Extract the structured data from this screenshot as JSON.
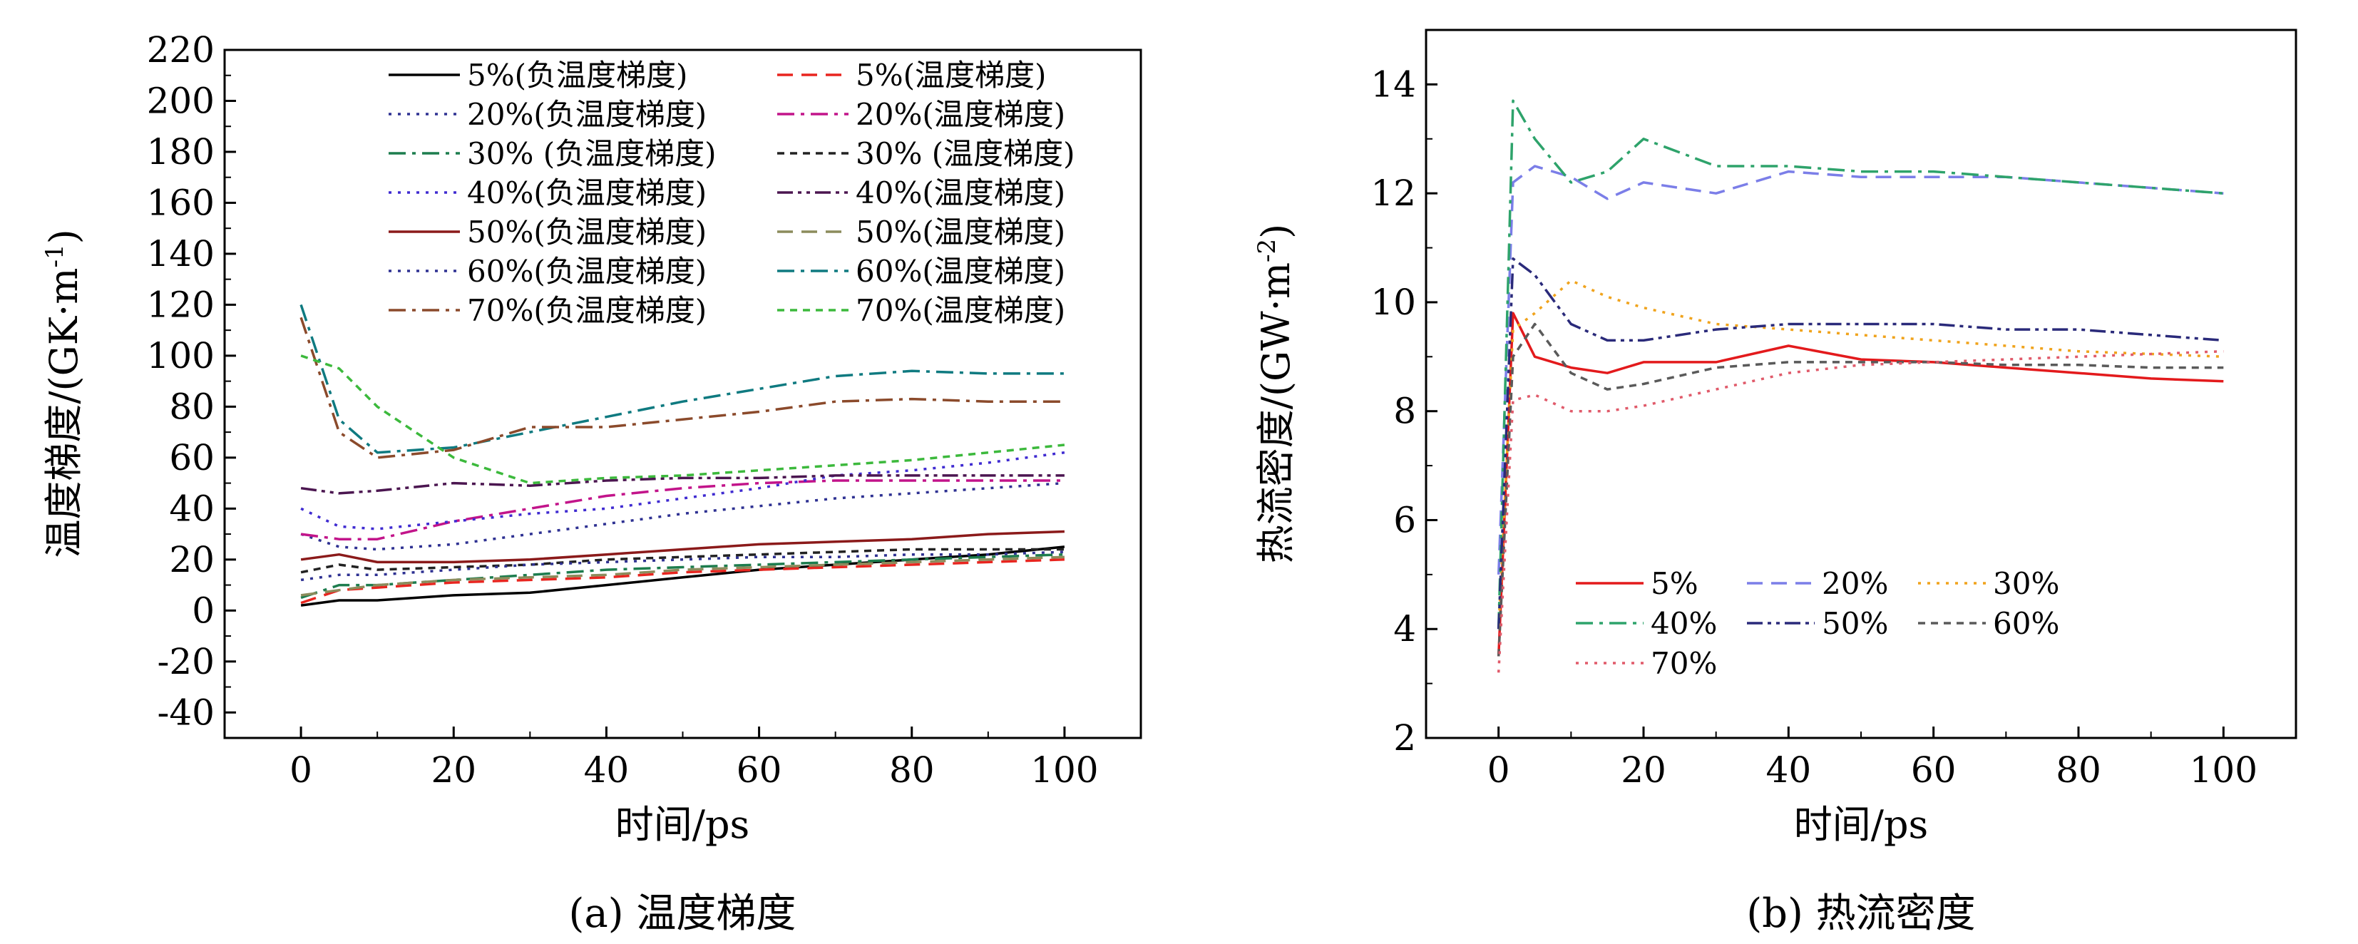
{
  "charts": [
    {
      "caption": "(a) 温度梯度",
      "xlabel": "时间/ps",
      "ylabel_main": "温度梯度/(GK·m",
      "ylabel_sup": "-1",
      "ylabel_tail": ")",
      "xticks": [
        "0",
        "20",
        "40",
        "60",
        "80",
        "100"
      ],
      "yticks": [
        "-40",
        "-20",
        "0",
        "20",
        "40",
        "60",
        "80",
        "100",
        "120",
        "140",
        "160",
        "180",
        "200",
        "220"
      ]
    },
    {
      "caption": "(b) 热流密度",
      "xlabel": "时间/ps",
      "ylabel_main": "热流密度/(GW·m",
      "ylabel_sup": "-2",
      "ylabel_tail": ")",
      "xticks": [
        "0",
        "20",
        "40",
        "60",
        "80",
        "100"
      ],
      "yticks": [
        "2",
        "4",
        "6",
        "8",
        "10",
        "12",
        "14"
      ]
    }
  ],
  "chart_data": [
    {
      "type": "line",
      "xlabel": "时间/ps",
      "ylabel": "温度梯度/(GK·m-1)",
      "xlim": [
        -10,
        110
      ],
      "ylim": [
        -50,
        220
      ],
      "grid": false,
      "legend_position": "top-center",
      "x": [
        0,
        5,
        10,
        20,
        30,
        40,
        50,
        60,
        70,
        80,
        90,
        100
      ],
      "series": [
        {
          "name": "5%(负温度梯度)",
          "color": "#000000",
          "dash": "solid",
          "values": [
            2,
            4,
            4,
            6,
            7,
            10,
            13,
            16,
            18,
            20,
            22,
            25
          ]
        },
        {
          "name": "5%(温度梯度)",
          "color": "#e8251f",
          "dash": "dash",
          "values": [
            3,
            8,
            9,
            11,
            12,
            13,
            15,
            16,
            17,
            18,
            19,
            20
          ]
        },
        {
          "name": "20%(负温度梯度)",
          "color": "#2e3192",
          "dash": "dot",
          "values": [
            30,
            25,
            24,
            26,
            30,
            34,
            38,
            41,
            44,
            46,
            48,
            50
          ]
        },
        {
          "name": "20%(温度梯度)",
          "color": "#c2148a",
          "dash": "dashdot",
          "values": [
            30,
            28,
            28,
            35,
            40,
            45,
            48,
            50,
            51,
            51,
            51,
            51
          ]
        },
        {
          "name": "30% (负温度梯度)",
          "color": "#1d7d4e",
          "dash": "dashdot",
          "values": [
            5,
            10,
            10,
            12,
            14,
            16,
            17,
            18,
            19,
            20,
            21,
            22
          ]
        },
        {
          "name": "30% (温度梯度)",
          "color": "#222222",
          "dash": "shortdash",
          "values": [
            15,
            18,
            16,
            17,
            18,
            20,
            21,
            22,
            23,
            24,
            24,
            24
          ]
        },
        {
          "name": "40%(负温度梯度)",
          "color": "#3f2bd1",
          "dash": "dot",
          "values": [
            40,
            33,
            32,
            35,
            38,
            40,
            44,
            48,
            53,
            55,
            58,
            62
          ]
        },
        {
          "name": "40%(温度梯度)",
          "color": "#4b1650",
          "dash": "dashdotdot",
          "values": [
            48,
            46,
            47,
            50,
            49,
            51,
            52,
            52,
            53,
            53,
            53,
            53
          ]
        },
        {
          "name": "50%(负温度梯度)",
          "color": "#8b1a1a",
          "dash": "solid",
          "values": [
            20,
            22,
            19,
            19,
            20,
            22,
            24,
            26,
            27,
            28,
            30,
            31
          ]
        },
        {
          "name": "50%(温度梯度)",
          "color": "#8c8c5c",
          "dash": "dash",
          "values": [
            6,
            8,
            10,
            12,
            13,
            14,
            16,
            17,
            18,
            19,
            20,
            21
          ]
        },
        {
          "name": "60%(负温度梯度)",
          "color": "#2e3192",
          "dash": "dot",
          "values": [
            12,
            14,
            14,
            16,
            18,
            19,
            20,
            21,
            21,
            22,
            22,
            23
          ]
        },
        {
          "name": "60%(温度梯度)",
          "color": "#0f7a80",
          "dash": "dashdot",
          "values": [
            120,
            75,
            62,
            64,
            70,
            76,
            82,
            87,
            92,
            94,
            93,
            93
          ]
        },
        {
          "name": "70%(负温度梯度)",
          "color": "#8b4a2b",
          "dash": "dashdot",
          "values": [
            115,
            70,
            60,
            63,
            72,
            72,
            75,
            78,
            82,
            83,
            82,
            82
          ]
        },
        {
          "name": "70%(温度梯度)",
          "color": "#3cb93c",
          "dash": "shortdash",
          "values": [
            100,
            95,
            80,
            60,
            50,
            52,
            53,
            55,
            57,
            59,
            62,
            65
          ]
        }
      ]
    },
    {
      "type": "line",
      "xlabel": "时间/ps",
      "ylabel": "热流密度/(GW·m-2)",
      "xlim": [
        -10,
        110
      ],
      "ylim": [
        2,
        15
      ],
      "grid": false,
      "legend_position": "bottom-center",
      "x": [
        0,
        2,
        5,
        10,
        15,
        20,
        30,
        40,
        50,
        60,
        70,
        80,
        90,
        100
      ],
      "series": [
        {
          "name": "5%",
          "color": "#e31a1c",
          "dash": "solid",
          "values": [
            3.5,
            9.8,
            9.0,
            8.8,
            8.7,
            8.9,
            8.9,
            9.2,
            8.95,
            8.9,
            8.8,
            8.7,
            8.6,
            8.55
          ]
        },
        {
          "name": "20%",
          "color": "#7b7ee8",
          "dash": "dash",
          "values": [
            5,
            12.2,
            12.5,
            12.3,
            11.9,
            12.2,
            12.0,
            12.4,
            12.3,
            12.3,
            12.3,
            12.2,
            12.1,
            12.0
          ]
        },
        {
          "name": "30%",
          "color": "#f0a31c",
          "dash": "dot",
          "values": [
            4,
            9.5,
            9.8,
            10.4,
            10.1,
            9.9,
            9.6,
            9.5,
            9.4,
            9.3,
            9.2,
            9.1,
            9.05,
            9.0
          ]
        },
        {
          "name": "40%",
          "color": "#2ea36b",
          "dash": "dashdot",
          "values": [
            4,
            13.7,
            13.0,
            12.2,
            12.4,
            13.0,
            12.5,
            12.5,
            12.4,
            12.4,
            12.3,
            12.2,
            12.1,
            12.0
          ]
        },
        {
          "name": "50%",
          "color": "#2a2a7a",
          "dash": "dashdotdot",
          "values": [
            4,
            10.8,
            10.5,
            9.6,
            9.3,
            9.3,
            9.5,
            9.6,
            9.6,
            9.6,
            9.5,
            9.5,
            9.4,
            9.3
          ]
        },
        {
          "name": "60%",
          "color": "#5a5a5a",
          "dash": "shortdash",
          "values": [
            3.5,
            9.0,
            9.6,
            8.7,
            8.4,
            8.5,
            8.8,
            8.9,
            8.9,
            8.9,
            8.85,
            8.85,
            8.8,
            8.8
          ]
        },
        {
          "name": "70%",
          "color": "#e05a6a",
          "dash": "dot",
          "values": [
            3.2,
            8.2,
            8.3,
            8.0,
            8.0,
            8.1,
            8.4,
            8.7,
            8.85,
            8.9,
            8.95,
            9.0,
            9.05,
            9.1
          ]
        }
      ]
    }
  ]
}
